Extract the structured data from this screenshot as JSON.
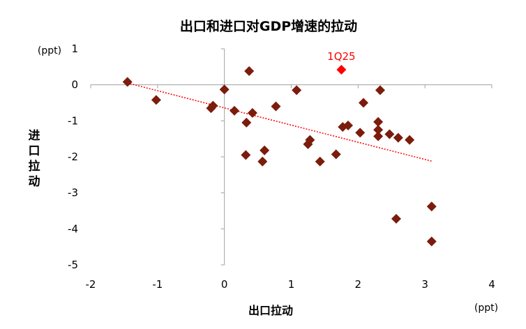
{
  "chart_data": {
    "type": "scatter",
    "title": "出口和进口对GDP增速的拉动",
    "xlabel": "出口拉动",
    "ylabel": "进口拉动",
    "x_unit": "(ppt)",
    "y_unit": "(ppt)",
    "xlim": [
      -2,
      4
    ],
    "ylim": [
      -5,
      1
    ],
    "x_ticks": [
      "-2",
      "-1",
      "0",
      "1",
      "2",
      "3",
      "4"
    ],
    "y_ticks": [
      "1",
      "0",
      "-1",
      "-2",
      "-3",
      "-4",
      "-5"
    ],
    "grid": false,
    "colors": {
      "points": "#7b1c0c",
      "highlight": "#ff0000",
      "trendline": "#ff0000",
      "axis": "#a0a0a0"
    },
    "highlight": {
      "label": "1Q25",
      "x": 1.75,
      "y": 0.42
    },
    "trendline": {
      "x1": -1.45,
      "y1": 0.05,
      "x2": 3.1,
      "y2": -2.12
    },
    "points": [
      {
        "x": -1.45,
        "y": 0.08
      },
      {
        "x": -1.02,
        "y": -0.42
      },
      {
        "x": -0.2,
        "y": -0.65
      },
      {
        "x": -0.17,
        "y": -0.58
      },
      {
        "x": 0.0,
        "y": -0.13
      },
      {
        "x": 0.15,
        "y": -0.72
      },
      {
        "x": 0.33,
        "y": -1.05
      },
      {
        "x": 0.37,
        "y": 0.38
      },
      {
        "x": 0.42,
        "y": -0.78
      },
      {
        "x": 0.32,
        "y": -1.95
      },
      {
        "x": 0.57,
        "y": -2.13
      },
      {
        "x": 0.6,
        "y": -1.82
      },
      {
        "x": 0.77,
        "y": -0.6
      },
      {
        "x": 1.08,
        "y": -0.15
      },
      {
        "x": 1.25,
        "y": -1.65
      },
      {
        "x": 1.28,
        "y": -1.53
      },
      {
        "x": 1.43,
        "y": -2.13
      },
      {
        "x": 1.67,
        "y": -1.93
      },
      {
        "x": 1.77,
        "y": -1.17
      },
      {
        "x": 1.85,
        "y": -1.13
      },
      {
        "x": 2.03,
        "y": -1.33
      },
      {
        "x": 2.08,
        "y": -0.5
      },
      {
        "x": 2.3,
        "y": -1.03
      },
      {
        "x": 2.3,
        "y": -1.25
      },
      {
        "x": 2.3,
        "y": -1.43
      },
      {
        "x": 2.33,
        "y": -0.15
      },
      {
        "x": 2.47,
        "y": -1.37
      },
      {
        "x": 2.6,
        "y": -1.47
      },
      {
        "x": 2.77,
        "y": -1.53
      },
      {
        "x": 2.57,
        "y": -3.72
      },
      {
        "x": 3.1,
        "y": -3.38
      },
      {
        "x": 3.1,
        "y": -4.35
      }
    ]
  }
}
